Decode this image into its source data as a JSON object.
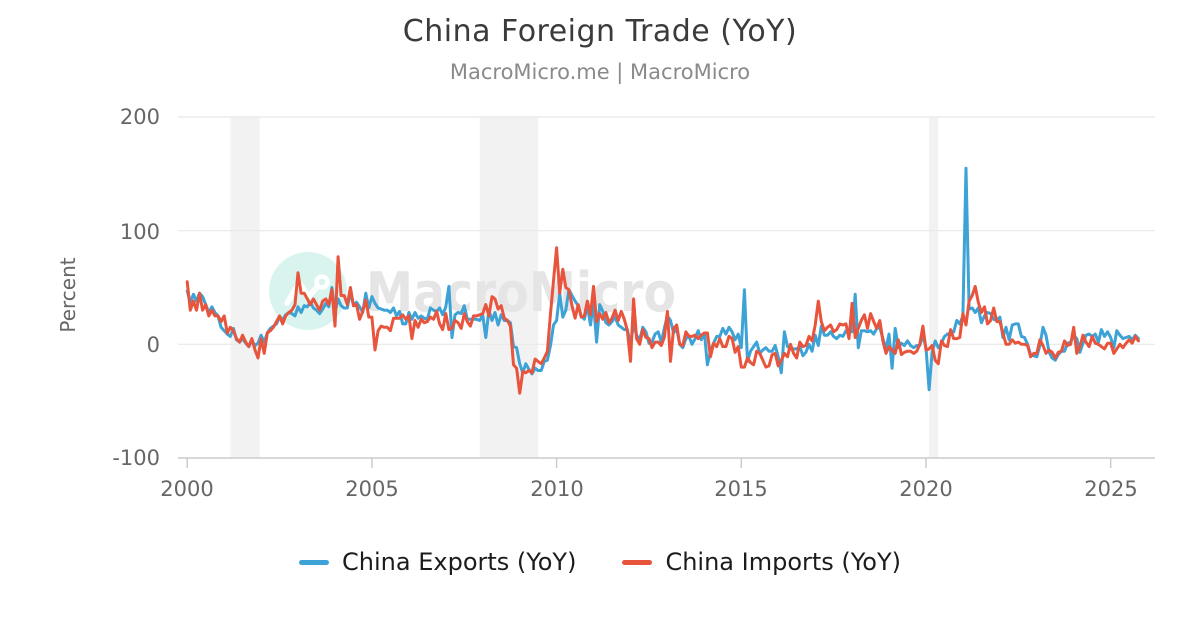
{
  "header": {
    "title": "China Foreign Trade (YoY)",
    "subtitle": "MacroMicro.me | MacroMicro"
  },
  "chart": {
    "ylabel": "Percent",
    "yticks": [
      "200",
      "100",
      "0",
      "-100"
    ],
    "xticks": [
      "2000",
      "2005",
      "2010",
      "2015",
      "2020",
      "2025"
    ]
  },
  "watermark": {
    "text": "MacroMicro"
  },
  "legend": {
    "items": [
      {
        "label": "China Exports (YoY)",
        "color": "#3DA2D6"
      },
      {
        "label": "China Imports (YoY)",
        "color": "#E8543C"
      }
    ]
  },
  "chart_data": {
    "type": "line",
    "title": "China Foreign Trade (YoY)",
    "subtitle": "MacroMicro.me | MacroMicro",
    "ylabel": "Percent",
    "xlabel": "",
    "frequency": "monthly",
    "x_start_year": 2000,
    "x_start_month": 1,
    "x_end_year": 2025,
    "x_end_month": 10,
    "xlim": [
      1999.75,
      2026.2
    ],
    "ylim": [
      -100,
      200
    ],
    "yticks": [
      200,
      100,
      0,
      -100
    ],
    "xticks": [
      2000,
      2005,
      2010,
      2015,
      2020,
      2025
    ],
    "grid": true,
    "legend_position": "bottom",
    "recession_bands": [
      [
        2001.17,
        2001.96
      ],
      [
        2007.92,
        2009.5
      ],
      [
        2020.08,
        2020.33
      ]
    ],
    "series": [
      {
        "name": "China Exports (YoY)",
        "color": "#3DA2D6",
        "values": [
          47,
          37,
          44,
          38,
          45,
          42,
          35,
          28,
          33,
          28,
          25,
          15,
          12,
          9,
          7,
          14,
          4,
          2,
          5,
          1,
          -2,
          3,
          -1,
          1,
          8,
          2,
          10,
          14,
          16,
          18,
          24,
          22,
          26,
          28,
          27,
          25,
          33,
          28,
          34,
          33,
          37,
          32,
          30,
          27,
          31,
          36,
          33,
          50,
          28,
          40,
          34,
          32,
          32,
          46,
          34,
          37,
          33,
          28,
          45,
          32,
          42,
          36,
          32,
          31,
          30,
          30,
          28,
          32,
          25,
          29,
          18,
          18,
          28,
          22,
          28,
          23,
          25,
          23,
          22,
          32,
          30,
          29,
          32,
          26,
          33,
          51,
          6,
          26,
          28,
          27,
          34,
          22,
          22,
          22,
          22,
          21,
          26,
          6,
          30,
          21,
          28,
          17,
          26,
          21,
          21,
          19,
          -2,
          -3,
          -17,
          -25,
          -17,
          -22,
          -26,
          -21,
          -23,
          -23,
          -15,
          -14,
          -1,
          17,
          21,
          45,
          24,
          30,
          48,
          43,
          38,
          34,
          25,
          22,
          34,
          17,
          37,
          2,
          35,
          29,
          19,
          17,
          20,
          24,
          17,
          15,
          13,
          13,
          -0.5,
          18,
          8,
          4,
          15,
          11,
          1,
          2,
          9,
          11,
          2,
          14,
          25,
          21,
          10,
          14,
          0,
          -3,
          5,
          7,
          0,
          5,
          12,
          4,
          10,
          -18,
          -6,
          1,
          7,
          7,
          14,
          9,
          15,
          11,
          4,
          9,
          -3,
          48,
          -15,
          -6,
          -2,
          2,
          -8,
          -5,
          -3,
          -6,
          -6,
          -1,
          -11,
          -25,
          11,
          -2,
          -4,
          -4,
          -4,
          -2,
          -10,
          -7,
          0,
          -6,
          8,
          -1,
          16,
          8,
          8,
          11,
          7,
          5,
          8,
          7,
          12,
          11,
          11,
          44,
          -3,
          12,
          12,
          11,
          12,
          9,
          14,
          15,
          5,
          -4,
          9,
          -21,
          14,
          -3,
          1,
          -1,
          3,
          -1,
          -3,
          -1,
          -1,
          8,
          -3,
          -40,
          -7,
          3,
          -3,
          1,
          7,
          9,
          10,
          11,
          21,
          18,
          25,
          155,
          31,
          32,
          28,
          32,
          19,
          25,
          28,
          27,
          22,
          21,
          24,
          6,
          15,
          4,
          17,
          18,
          18,
          7,
          6,
          0,
          -9,
          -10,
          -11,
          -1,
          15,
          8,
          -7,
          -12,
          -14,
          -9,
          -6,
          -6,
          1,
          2,
          8,
          5,
          -7,
          1,
          8,
          9,
          7,
          9,
          2,
          13,
          7,
          11,
          6,
          -3,
          12,
          8,
          5,
          6,
          7,
          4,
          8,
          5
        ]
      },
      {
        "name": "China Imports (YoY)",
        "color": "#E8543C",
        "values": [
          55,
          30,
          38,
          30,
          45,
          30,
          35,
          25,
          30,
          25,
          25,
          20,
          25,
          10,
          15,
          12,
          5,
          2,
          8,
          2,
          -2,
          5,
          -5,
          -12,
          5,
          -8,
          10,
          12,
          15,
          20,
          25,
          18,
          25,
          28,
          30,
          35,
          63,
          45,
          45,
          40,
          35,
          40,
          35,
          30,
          38,
          40,
          35,
          48,
          16,
          77,
          43,
          43,
          35,
          50,
          34,
          35,
          22,
          29,
          39,
          24,
          24,
          -5,
          12,
          16,
          15,
          15,
          12,
          23,
          23,
          23,
          26,
          22,
          25,
          5,
          21,
          15,
          22,
          19,
          20,
          24,
          22,
          29,
          18,
          13,
          27,
          13,
          14,
          21,
          19,
          14,
          27,
          20,
          16,
          25,
          25,
          26,
          27,
          35,
          25,
          42,
          40,
          31,
          34,
          23,
          21,
          16,
          -18,
          -21,
          -43,
          -24,
          -25,
          -23,
          -25,
          -13,
          -15,
          -17,
          -12,
          -6,
          27,
          56,
          85,
          45,
          66,
          50,
          48,
          34,
          23,
          35,
          24,
          25,
          38,
          26,
          51,
          20,
          27,
          22,
          28,
          19,
          23,
          30,
          21,
          29,
          22,
          12,
          -15,
          40,
          5,
          0,
          13,
          6,
          5,
          -3,
          2,
          2,
          -1,
          6,
          29,
          -15,
          14,
          17,
          0,
          -1,
          11,
          7,
          7,
          8,
          5,
          8,
          10,
          10,
          -11,
          1,
          -2,
          5,
          -2,
          -2,
          7,
          5,
          -7,
          -2,
          -20,
          -20,
          -12,
          -16,
          -18,
          -6,
          -8,
          -14,
          -20,
          -19,
          -9,
          -8,
          -19,
          -14,
          -8,
          -11,
          0,
          -8,
          -12,
          2,
          -2,
          -1,
          7,
          3,
          17,
          38,
          20,
          12,
          15,
          17,
          11,
          13,
          18,
          17,
          18,
          5,
          36,
          6,
          14,
          21,
          26,
          14,
          27,
          20,
          14,
          21,
          3,
          -8,
          -2,
          -5,
          -8,
          4,
          -9,
          -7,
          -6,
          -6,
          -8,
          -6,
          0,
          16,
          -5,
          -4,
          -1,
          -14,
          -17,
          3,
          -1,
          -2,
          13,
          5,
          5,
          6,
          27,
          17,
          38,
          43,
          51,
          37,
          28,
          33,
          18,
          21,
          32,
          20,
          20,
          10,
          0,
          0,
          4,
          1,
          2,
          0,
          0,
          -1,
          -11,
          -8,
          -8,
          4,
          -1,
          -8,
          -5,
          -7,
          -12,
          -7,
          -6,
          3,
          -1,
          0,
          15,
          -8,
          -2,
          8,
          2,
          -2,
          7,
          1,
          0,
          -2,
          -4,
          1,
          1,
          -8,
          -4,
          0,
          -3,
          1,
          4,
          1,
          7,
          3
        ]
      }
    ]
  }
}
